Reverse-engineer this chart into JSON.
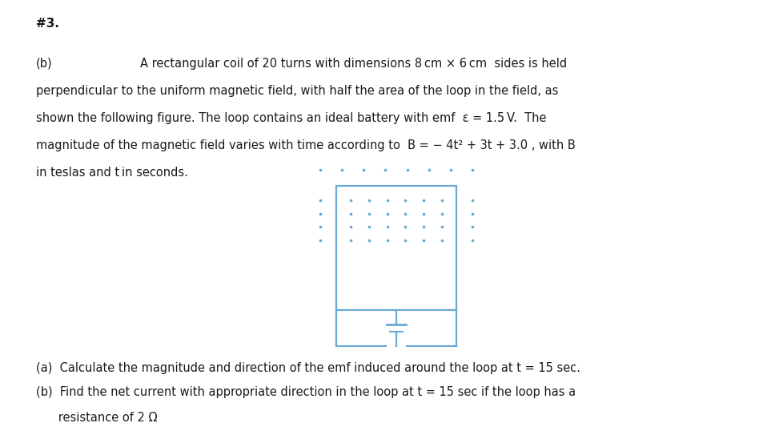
{
  "bg_color": "#ffffff",
  "text_color": "#1a1a1a",
  "title": "#3.",
  "rect_color": "#6aaad4",
  "dot_color": "#6aaad4",
  "fontsize_title": 11,
  "fontsize_body": 10.5,
  "fontsize_questions": 10.5,
  "line1_label": "(b)",
  "line1_text": "A rectangular coil of 20 turns with dimensions 8 cm × 6 cm  sides is held",
  "line2_text": "perpendicular to the uniform magnetic field, with half the area of the loop in the field, as",
  "line3_text": "shown the following figure. The loop contains an ideal battery with emf  ε = 1.5 V.  The",
  "line4_text": "magnitude of the magnetic field varies with time according to  B = − 4t² + 3t + 3.0 , with B",
  "line5_text": "in teslas and t in seconds.",
  "q_a": "(a)  Calculate the magnitude and direction of the emf induced around the loop at t = 15 sec.",
  "q_b1": "(b)  Find the net current with appropriate direction in the loop at t = 15 sec if the loop has a",
  "q_b2": "      resistance of 2 Ω"
}
